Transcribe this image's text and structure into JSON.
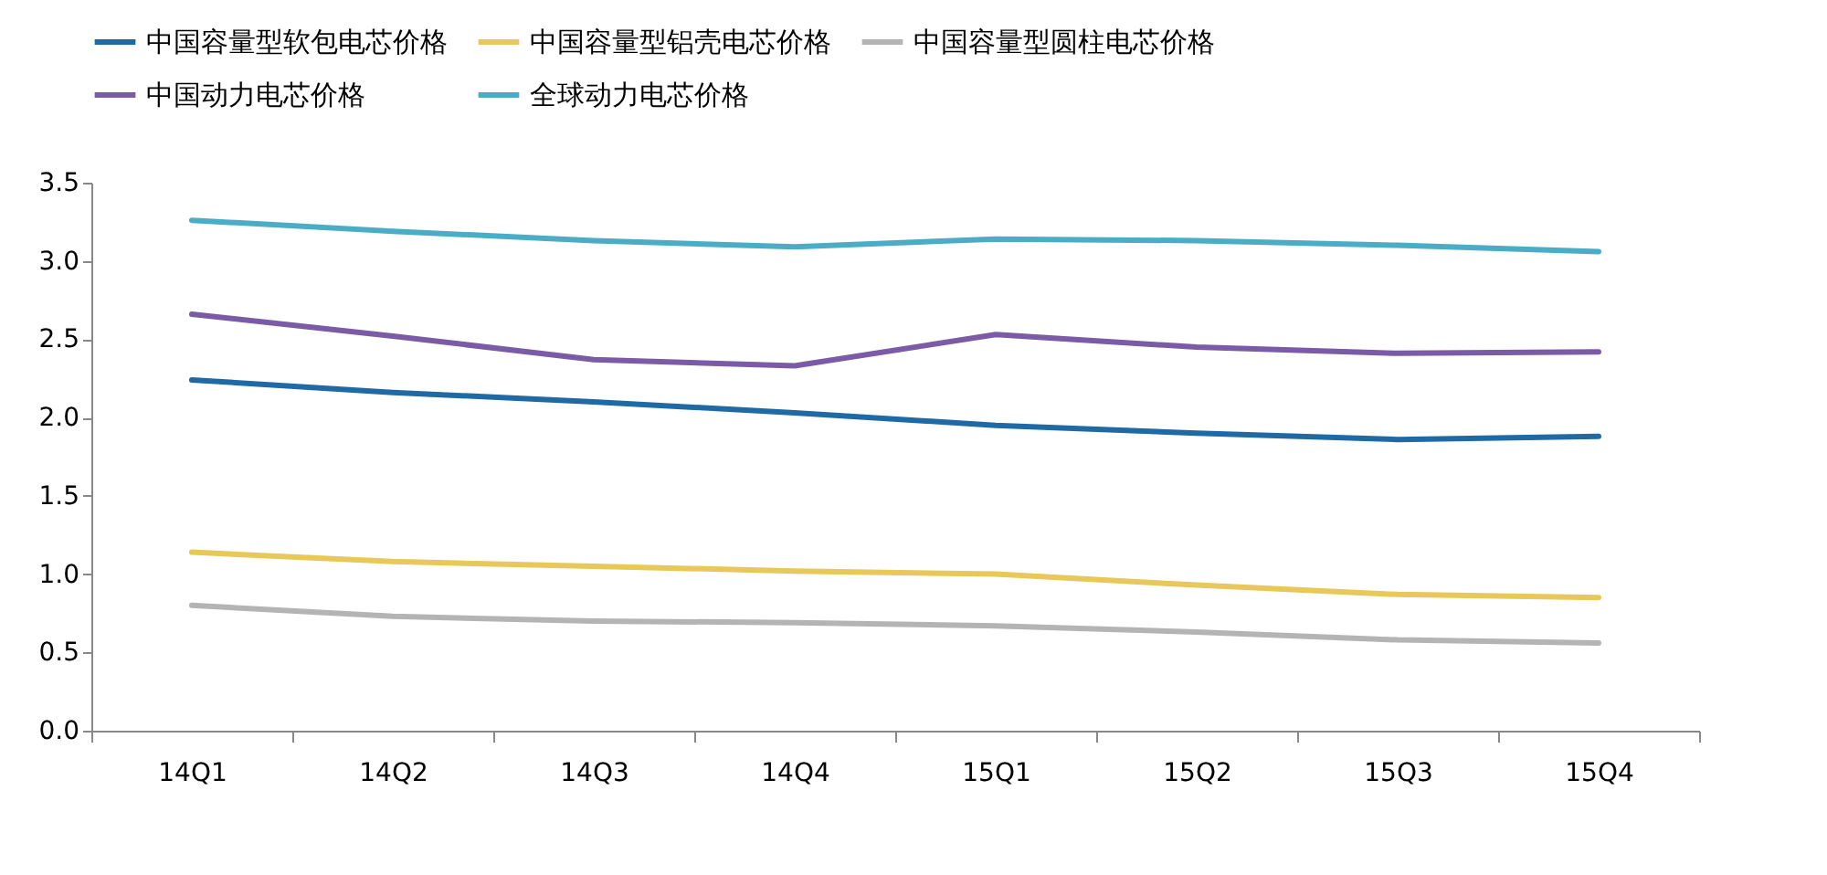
{
  "chart_data": {
    "type": "line",
    "categories": [
      "14Q1",
      "14Q2",
      "14Q3",
      "14Q4",
      "15Q1",
      "15Q2",
      "15Q3",
      "15Q4"
    ],
    "series": [
      {
        "name": "中国容量型软包电芯价格",
        "color": "#1f6aa5",
        "values": [
          2.24,
          2.16,
          2.1,
          2.03,
          1.95,
          1.9,
          1.86,
          1.88
        ]
      },
      {
        "name": "中国容量型铝壳电芯价格",
        "color": "#e8c85a",
        "values": [
          1.14,
          1.08,
          1.05,
          1.02,
          1.0,
          0.93,
          0.87,
          0.85
        ]
      },
      {
        "name": "中国容量型圆柱电芯价格",
        "color": "#b4b4b4",
        "values": [
          0.8,
          0.73,
          0.7,
          0.69,
          0.67,
          0.63,
          0.58,
          0.56
        ]
      },
      {
        "name": "中国动力电芯价格",
        "color": "#7b5aa6",
        "values": [
          2.66,
          2.52,
          2.37,
          2.33,
          2.53,
          2.45,
          2.41,
          2.42
        ]
      },
      {
        "name": "全球动力电芯价格",
        "color": "#4bacc6",
        "values": [
          3.26,
          3.19,
          3.13,
          3.09,
          3.14,
          3.13,
          3.1,
          3.06
        ]
      }
    ],
    "ylim": [
      0,
      3.5
    ],
    "yticks": [
      {
        "value": 0,
        "label": "0.0"
      },
      {
        "value": 0.5,
        "label": "0.5"
      },
      {
        "value": 1,
        "label": "1.0"
      },
      {
        "value": 1.5,
        "label": "1.5"
      },
      {
        "value": 2,
        "label": "2.0"
      },
      {
        "value": 2.5,
        "label": "2.5"
      },
      {
        "value": 3,
        "label": "3.0"
      },
      {
        "value": 3.5,
        "label": "3.5"
      }
    ],
    "grid": false,
    "legend": "top",
    "marker": "none",
    "line_style": "solid"
  }
}
